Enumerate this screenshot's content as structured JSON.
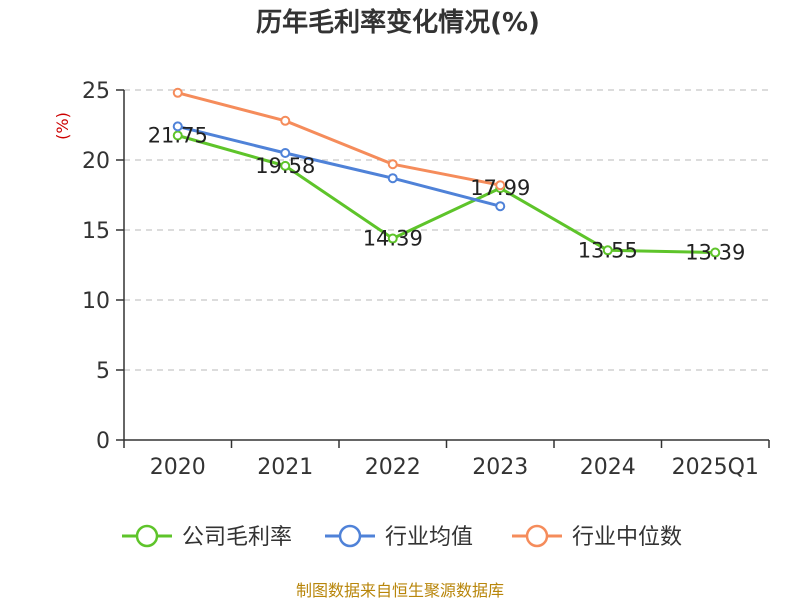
{
  "chart_data": {
    "type": "line",
    "title": "历年毛利率变化情况(%)",
    "ylabel": "(%)",
    "categories": [
      "2020",
      "2021",
      "2022",
      "2023",
      "2024",
      "2025Q1"
    ],
    "ylim": [
      0,
      25
    ],
    "yticks": [
      0,
      5,
      10,
      15,
      20,
      25
    ],
    "grid": true,
    "legend_position": "bottom",
    "series": [
      {
        "name": "公司毛利率",
        "color": "#5ec42a",
        "values": [
          21.75,
          19.58,
          14.39,
          17.99,
          13.55,
          13.39
        ],
        "labels": [
          "21.75",
          "19.58",
          "14.39",
          "17.99",
          "13.55",
          "13.39"
        ]
      },
      {
        "name": "行业均值",
        "color": "#4f82d8",
        "values": [
          22.4,
          20.5,
          18.7,
          16.7,
          null,
          null
        ]
      },
      {
        "name": "行业中位数",
        "color": "#f58c5b",
        "values": [
          24.8,
          22.8,
          19.7,
          18.2,
          null,
          null
        ]
      }
    ],
    "ylabel_color": "#cc0000"
  },
  "source_text": "制图数据来自恒生聚源数据库",
  "source_color": "#b8860b"
}
